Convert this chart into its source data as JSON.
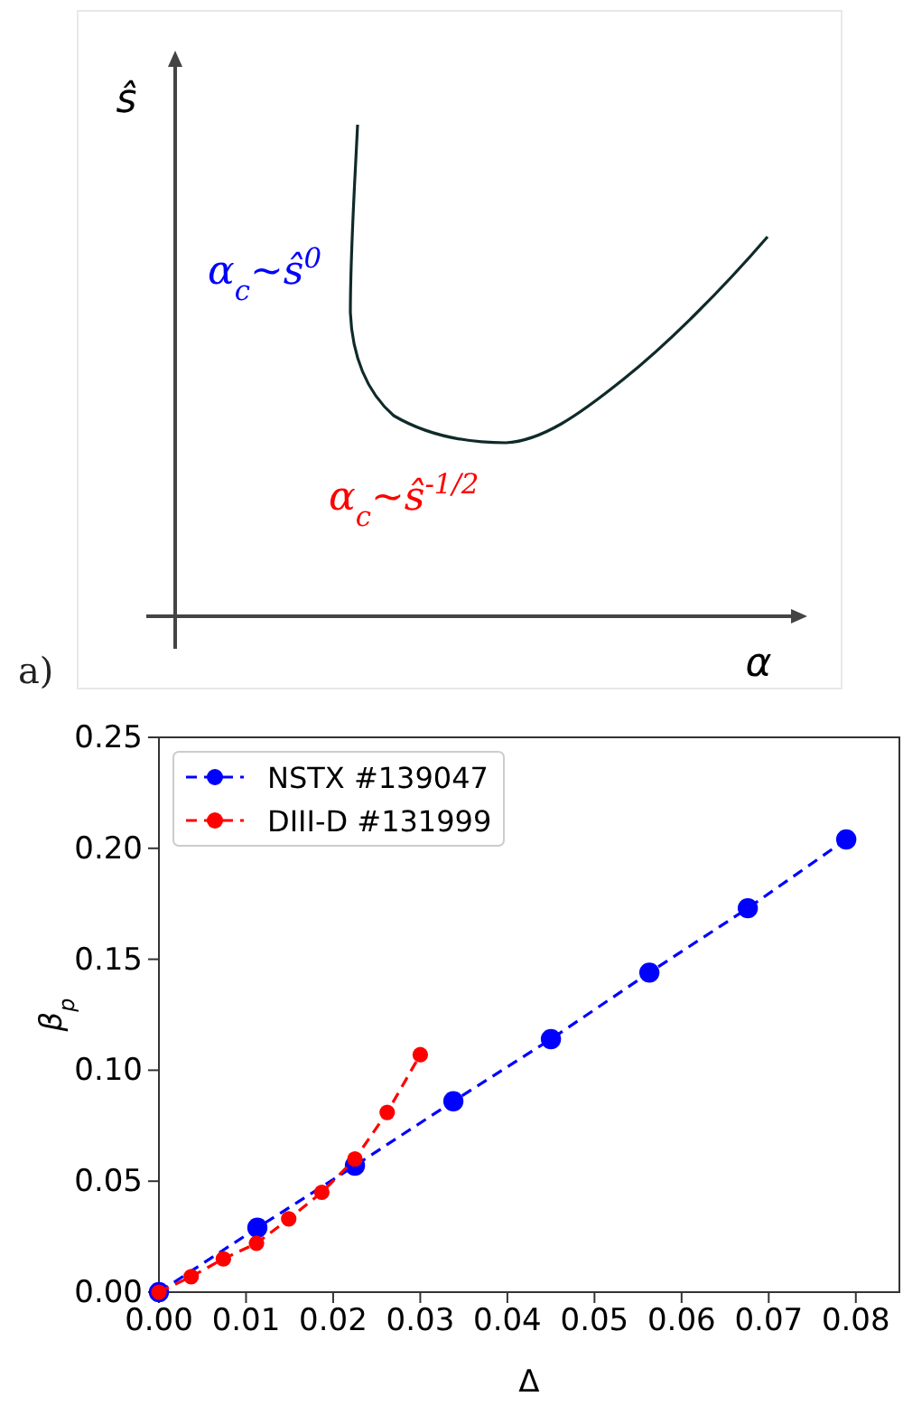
{
  "chart_data": [
    {
      "type": "other",
      "xlabel": "α",
      "ylabel": "ŝ",
      "annotations": [
        "α$_{c}$~ŝ$^{0}$",
        "α$_{c}$~ŝ$^{-1/2}$",
        "a)"
      ]
    },
    {
      "type": "line",
      "xlabel": "Δ",
      "ylabel": "β$_{p}$",
      "xlim": [
        0,
        0.085
      ],
      "ylim": [
        0,
        0.25
      ],
      "xticks": [
        {
          "value": 0,
          "label": "0.00"
        },
        {
          "value": 0.01,
          "label": "0.01"
        },
        {
          "value": 0.02,
          "label": "0.02"
        },
        {
          "value": 0.03,
          "label": "0.03"
        },
        {
          "value": 0.04,
          "label": "0.04"
        },
        {
          "value": 0.05,
          "label": "0.05"
        },
        {
          "value": 0.06,
          "label": "0.06"
        },
        {
          "value": 0.07,
          "label": "0.07"
        },
        {
          "value": 0.08,
          "label": "0.08"
        }
      ],
      "yticks": [
        {
          "value": 0,
          "label": "0.00"
        },
        {
          "value": 0.05,
          "label": "0.05"
        },
        {
          "value": 0.1,
          "label": "0.10"
        },
        {
          "value": 0.15,
          "label": "0.15"
        },
        {
          "value": 0.2,
          "label": "0.20"
        },
        {
          "value": 0.25,
          "label": "0.25"
        }
      ],
      "marker": "circle",
      "line_style": "dashed",
      "legend": "top left",
      "series": [
        {
          "name": "NSTX #139047",
          "color": "#0000ff",
          "x": [
            0,
            0.0113,
            0.0225,
            0.0338,
            0.045,
            0.0563,
            0.0676,
            0.0789
          ],
          "values": [
            0,
            0.029,
            0.057,
            0.086,
            0.114,
            0.144,
            0.173,
            0.204
          ]
        },
        {
          "name": "DIII-D #131999",
          "color": "#ff0000",
          "x": [
            0,
            0.0037,
            0.0074,
            0.0112,
            0.0149,
            0.0187,
            0.0225,
            0.0262,
            0.03
          ],
          "values": [
            0,
            0.007,
            0.015,
            0.022,
            0.033,
            0.045,
            0.06,
            0.081,
            0.107
          ]
        }
      ]
    }
  ]
}
